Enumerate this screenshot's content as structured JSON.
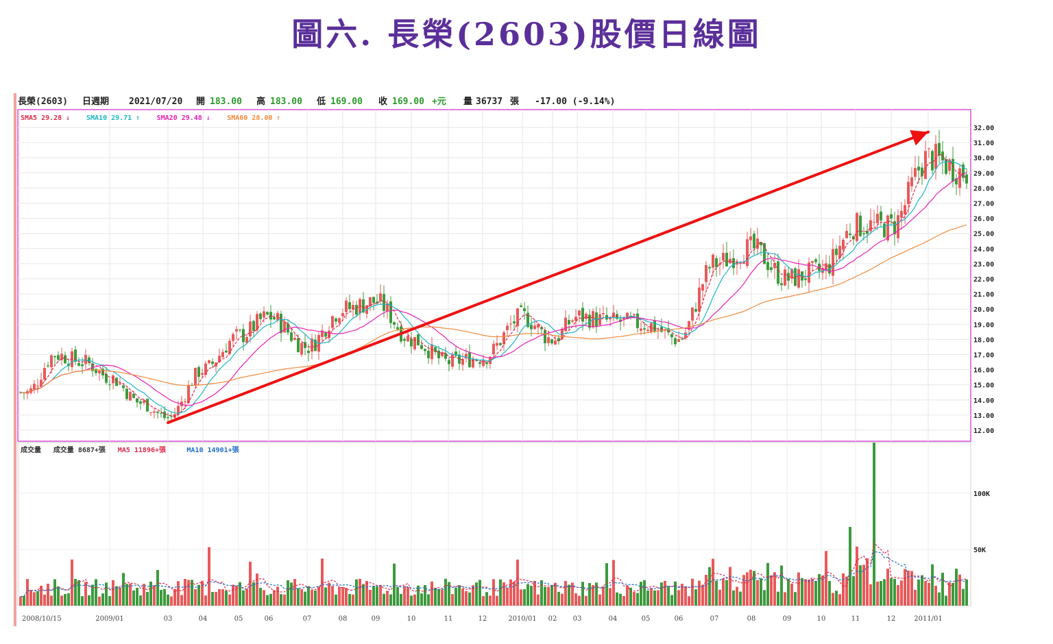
{
  "page_title": "圖六. 長榮(2603)股價日線圖",
  "header": {
    "stock": "長榮(2603)",
    "period": "日週期",
    "date": "2021/07/20",
    "open_label": "開",
    "open": "183.00",
    "high_label": "高",
    "high": "183.00",
    "low_label": "低",
    "low": "169.00",
    "close_label": "收",
    "close": "169.00",
    "close_suffix": "+元",
    "volume_label": "量",
    "volume": "36737",
    "volume_unit": "張",
    "change": "-17.00 (-9.14%)"
  },
  "ma_legend": [
    {
      "text": "SMA5 29.28",
      "arrow": "⇓",
      "color": "#e0284a"
    },
    {
      "text": "SMA10 29.71",
      "arrow": "⇑",
      "color": "#1ab7c9"
    },
    {
      "text": "SMA20 29.48",
      "arrow": "⇓",
      "color": "#e81fb5"
    },
    {
      "text": "SMA60 28.00",
      "arrow": "⇑",
      "color": "#f08a3c"
    }
  ],
  "volume_legend": [
    {
      "text": "成交量",
      "color": "#333333"
    },
    {
      "text": "成交量 8687",
      "arrow": "+張",
      "color": "#333333"
    },
    {
      "text": "MA5 11896",
      "arrow": "+張",
      "color": "#e0284a"
    },
    {
      "text": "MA10 14901",
      "arrow": "+張",
      "color": "#1f6fc9"
    }
  ],
  "colors": {
    "up": "#e85a5a",
    "down": "#3c9a3c",
    "frame": "#d84fd8",
    "trend_arrow": "#ee1111",
    "title": "#5b2f9a"
  },
  "chart_data": {
    "type": "candlestick",
    "y_axis": {
      "min": 12,
      "max": 32,
      "ticks": [
        "12.00",
        "13.00",
        "14.00",
        "15.00",
        "16.00",
        "17.00",
        "18.00",
        "19.00",
        "20.00",
        "21.00",
        "22.00",
        "23.00",
        "24.00",
        "25.00",
        "26.00",
        "27.00",
        "28.00",
        "29.00",
        "30.00",
        "31.00",
        "32.00"
      ]
    },
    "volume_axis": {
      "ticks": [
        "50K",
        "100K"
      ],
      "tick_values": [
        50000,
        100000
      ],
      "max": 145000
    },
    "x_tick_labels": [
      "2008/10/15",
      "2009/01",
      "03",
      "04",
      "05",
      "06",
      "07",
      "08",
      "09",
      "10",
      "11",
      "12",
      "2010/01",
      "02",
      "03",
      "04",
      "05",
      "06",
      "07",
      "08",
      "09",
      "10",
      "11",
      "12",
      "2011/01"
    ],
    "price_keypoints": [
      {
        "month": "2008/10",
        "close": 14.5
      },
      {
        "month": "2008/11",
        "close": 17.0
      },
      {
        "month": "2008/12",
        "close": 16.5
      },
      {
        "month": "2009/01",
        "close": 15.5
      },
      {
        "month": "2009/02",
        "close": 13.8
      },
      {
        "month": "2009/03",
        "close": 12.8
      },
      {
        "month": "2009/04",
        "close": 16.0
      },
      {
        "month": "2009/05",
        "close": 18.2
      },
      {
        "month": "2009/06",
        "close": 19.5
      },
      {
        "month": "2009/07",
        "close": 17.5
      },
      {
        "month": "2009/08",
        "close": 20.0
      },
      {
        "month": "2009/09",
        "close": 20.5
      },
      {
        "month": "2009/10",
        "close": 18.0
      },
      {
        "month": "2009/11",
        "close": 16.5
      },
      {
        "month": "2009/12",
        "close": 16.8
      },
      {
        "month": "2010/01",
        "close": 19.5
      },
      {
        "month": "2010/02",
        "close": 18.0
      },
      {
        "month": "2010/03",
        "close": 19.5
      },
      {
        "month": "2010/04",
        "close": 19.2
      },
      {
        "month": "2010/05",
        "close": 19.0
      },
      {
        "month": "2010/06",
        "close": 18.0
      },
      {
        "month": "2010/07",
        "close": 23.0
      },
      {
        "month": "2010/08",
        "close": 24.0
      },
      {
        "month": "2010/09",
        "close": 22.0
      },
      {
        "month": "2010/10",
        "close": 22.5
      },
      {
        "month": "2010/11",
        "close": 25.5
      },
      {
        "month": "2010/12",
        "close": 25.5
      },
      {
        "month": "2011/01",
        "close": 30.0
      }
    ],
    "trend_arrow": {
      "from": {
        "month": "2009/03",
        "price": 12.5
      },
      "to": {
        "month": "2011/01",
        "price": 31.7
      }
    }
  }
}
